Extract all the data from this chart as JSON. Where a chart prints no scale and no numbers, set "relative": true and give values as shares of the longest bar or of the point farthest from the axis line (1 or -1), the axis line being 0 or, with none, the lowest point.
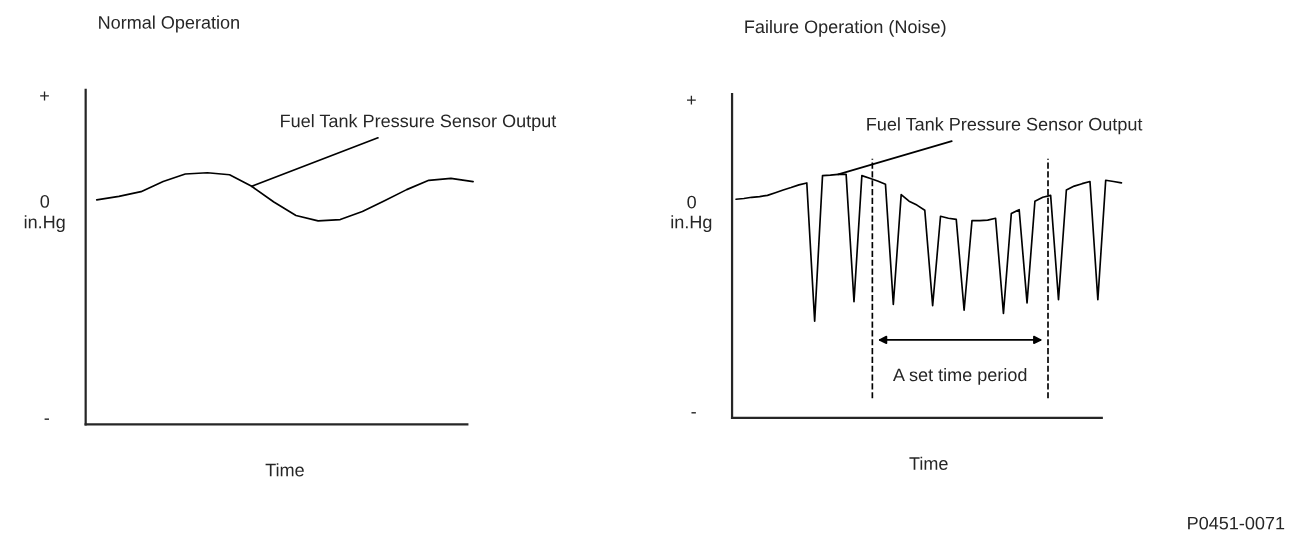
{
  "chart_data": [
    {
      "type": "line",
      "title": "Normal Operation",
      "xlabel": "Time",
      "ylabel": "in.Hg",
      "relative": true,
      "color": "#000000",
      "categories": [
        null,
        null,
        null,
        null,
        null,
        null,
        null,
        null,
        null,
        null,
        null,
        null,
        null,
        null,
        null,
        null,
        null,
        null
      ],
      "values": [
        0.892,
        0.906,
        0.925,
        0.965,
        0.995,
        1,
        0.992,
        0.946,
        0.884,
        0.83,
        0.809,
        0.814,
        0.846,
        0.889,
        0.933,
        0.97,
        0.978,
        0.965
      ],
      "annotations": [
        "+",
        "0",
        "-",
        "Fuel Tank Pressure Sensor Output"
      ]
    },
    {
      "type": "line",
      "title": "Failure Operation (Noise)",
      "xlabel": "Time",
      "ylabel": "in.Hg",
      "relative": true,
      "color": "#000000",
      "categories": [
        null,
        null,
        null,
        null,
        null,
        null,
        null,
        null,
        null,
        null,
        null,
        null,
        null,
        null,
        null,
        null,
        null,
        null,
        null,
        null,
        null,
        null,
        null,
        null,
        null,
        null,
        null,
        null,
        null,
        null,
        null,
        null,
        null,
        null,
        null,
        null,
        null,
        null,
        null,
        null,
        null,
        null,
        null,
        null,
        null,
        null,
        null,
        null,
        null,
        null
      ],
      "values": [
        0.898,
        0.901,
        0.906,
        0.909,
        0.914,
        0.925,
        0.936,
        0.946,
        0.957,
        0.965,
        0.397,
        0.995,
        0.997,
        1,
        1,
        0.477,
        0.995,
        0.984,
        0.973,
        0.96,
        0.466,
        0.917,
        0.89,
        0.874,
        0.853,
        0.461,
        0.828,
        0.82,
        0.815,
        0.442,
        0.81,
        0.81,
        0.812,
        0.82,
        0.429,
        0.839,
        0.855,
        0.472,
        0.89,
        0.906,
        0.914,
        0.485,
        0.936,
        0.952,
        0.962,
        0.971,
        0.485,
        0.976,
        0.971,
        0.965
      ],
      "annotations": [
        "+",
        "0",
        "-",
        "Fuel Tank Pressure Sensor Output",
        "P0451-0071",
        "A set time period"
      ]
    }
  ]
}
